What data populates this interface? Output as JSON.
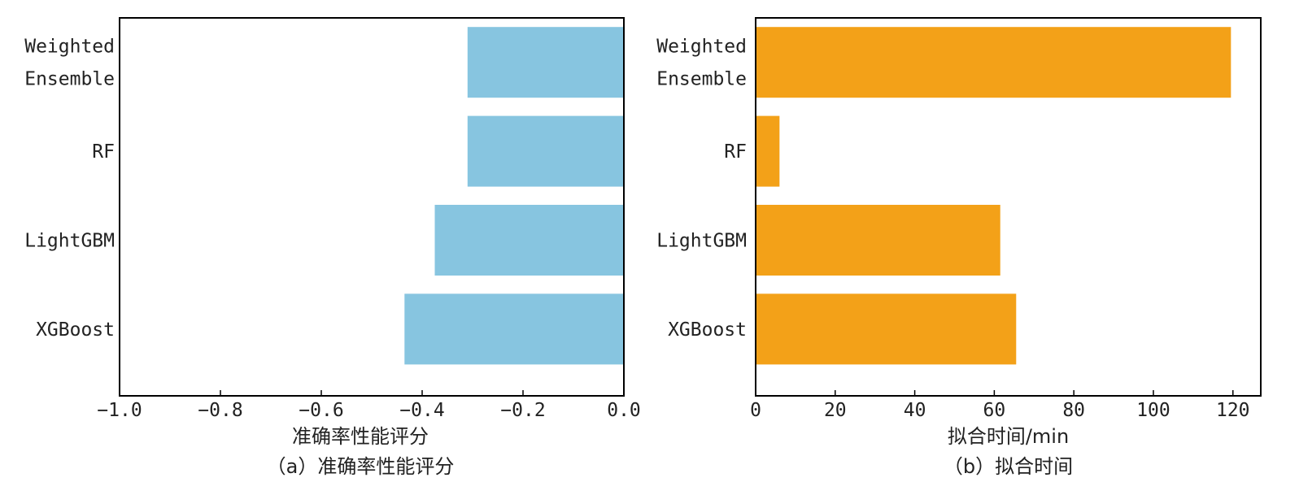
{
  "chart_data": [
    {
      "type": "bar",
      "orientation": "horizontal",
      "caption": "（a）准确率性能评分",
      "xlabel": "准确率性能评分",
      "ylabel": "",
      "xlim": [
        -1.0,
        0.0
      ],
      "xticks": [
        "−1.0",
        "−0.8",
        "−0.6",
        "−0.4",
        "−0.2",
        "0.0"
      ],
      "xtick_values": [
        -1.0,
        -0.8,
        -0.6,
        -0.4,
        -0.2,
        0.0
      ],
      "categories": [
        [
          "Weighted",
          "Ensemble"
        ],
        [
          "RF"
        ],
        [
          "LightGBM"
        ],
        [
          "XGBoost"
        ]
      ],
      "values": [
        -0.31,
        -0.31,
        -0.375,
        -0.435
      ],
      "color": "#87c5e0",
      "grid": false
    },
    {
      "type": "bar",
      "orientation": "horizontal",
      "caption": "（b）拟合时间",
      "xlabel": "拟合时间/min",
      "ylabel": "",
      "xlim": [
        0,
        127
      ],
      "xticks": [
        "0",
        "20",
        "40",
        "60",
        "80",
        "100",
        "120"
      ],
      "xtick_values": [
        0,
        20,
        40,
        60,
        80,
        100,
        120
      ],
      "categories": [
        [
          "Weighted",
          "Ensemble"
        ],
        [
          "RF"
        ],
        [
          "LightGBM"
        ],
        [
          "XGBoost"
        ]
      ],
      "values": [
        119.5,
        6,
        61.5,
        65.5
      ],
      "color": "#f3a118",
      "grid": false
    }
  ]
}
